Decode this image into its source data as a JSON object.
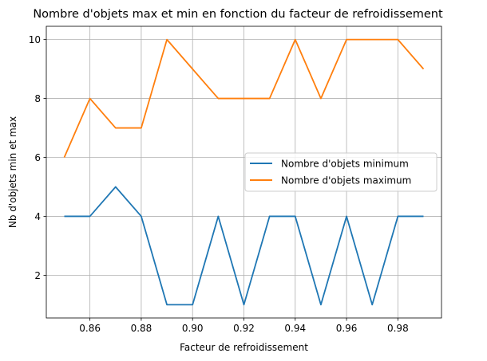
{
  "chart_data": {
    "type": "line",
    "title": "Nombre d'objets max et min en fonction du facteur de refroidissement",
    "xlabel": "Facteur de refroidissement",
    "ylabel": "Nb d'objets min et max",
    "x": [
      0.85,
      0.86,
      0.87,
      0.88,
      0.89,
      0.9,
      0.91,
      0.92,
      0.93,
      0.94,
      0.95,
      0.96,
      0.97,
      0.98,
      0.99
    ],
    "series": [
      {
        "name": "Nombre d'objets minimum",
        "color": "#1f77b4",
        "values": [
          4,
          4,
          5,
          4,
          1,
          1,
          4,
          1,
          4,
          4,
          1,
          4,
          1,
          4,
          4
        ]
      },
      {
        "name": "Nombre d'objets maximum",
        "color": "#ff7f0e",
        "values": [
          6,
          8,
          7,
          7,
          10,
          9,
          8,
          8,
          8,
          10,
          8,
          10,
          10,
          10,
          9
        ]
      }
    ],
    "xlim": [
      0.843,
      0.997
    ],
    "ylim": [
      0.55,
      10.45
    ],
    "xticks": [
      0.86,
      0.88,
      0.9,
      0.92,
      0.94,
      0.96,
      0.98
    ],
    "xtick_labels": [
      "0.86",
      "0.88",
      "0.90",
      "0.92",
      "0.94",
      "0.96",
      "0.98"
    ],
    "yticks": [
      2,
      4,
      6,
      8,
      10
    ],
    "ytick_labels": [
      "2",
      "4",
      "6",
      "8",
      "10"
    ],
    "grid": true,
    "legend_position": "center-right"
  }
}
